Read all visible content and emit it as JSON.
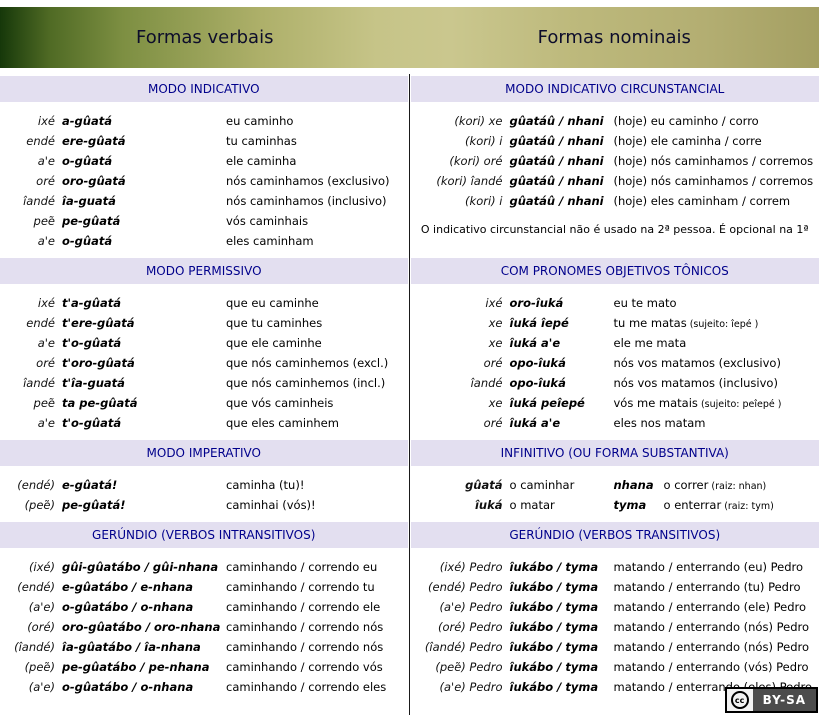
{
  "header": {
    "left_title": "Formas verbais",
    "right_title": "Formas nominais"
  },
  "bands": [
    {
      "left": {
        "title": "MODO INDICATIVO",
        "rows": [
          {
            "pronoun": "ixé",
            "form": "a-gûatá",
            "translation": "eu caminho"
          },
          {
            "pronoun": "endé",
            "form": "ere-gûatá",
            "translation": "tu caminhas"
          },
          {
            "pronoun": "a'e",
            "form": "o-gûatá",
            "translation": "ele caminha"
          },
          {
            "pronoun": "oré",
            "form": "oro-gûatá",
            "translation": "nós caminhamos (exclusivo)"
          },
          {
            "pronoun": "îandé",
            "form": "îa-guatá",
            "translation": "nós caminhamos (inclusivo)"
          },
          {
            "pronoun": "peẽ",
            "form": "pe-gûatá",
            "translation": "vós caminhais"
          },
          {
            "pronoun": "a'e",
            "form": "o-gûatá",
            "translation": "eles caminham"
          }
        ]
      },
      "right": {
        "title": "MODO INDICATIVO CIRCUNSTANCIAL",
        "rows": [
          {
            "pronoun": "(kori) xe",
            "form": "gûatáû / nhani",
            "translation": "(hoje) eu caminho / corro"
          },
          {
            "pronoun": "(kori) i",
            "form": "gûatáû / nhani",
            "translation": "(hoje) ele caminha / corre"
          },
          {
            "pronoun": "(kori) oré",
            "form": "gûatáû / nhani",
            "translation": "(hoje) nós caminhamos / corremos"
          },
          {
            "pronoun": "(kori) îandé",
            "form": "gûatáû / nhani",
            "translation": "(hoje) nós caminhamos / corremos"
          },
          {
            "pronoun": "(kori) i",
            "form": "gûatáû / nhani",
            "translation": "(hoje) eles caminham / correm"
          }
        ],
        "note": "O indicativo circunstancial não é usado na 2ª pessoa. É opcional na 1ª"
      }
    },
    {
      "left": {
        "title": "MODO PERMISSIVO",
        "rows": [
          {
            "pronoun": "ixé",
            "form": "t'a-gûatá",
            "translation": "que eu caminhe"
          },
          {
            "pronoun": "endé",
            "form": "t'ere-gûatá",
            "translation": "que tu caminhes"
          },
          {
            "pronoun": "a'e",
            "form": "t'o-gûatá",
            "translation": "que ele caminhe"
          },
          {
            "pronoun": "oré",
            "form": "t'oro-gûatá",
            "translation": "que nós caminhemos (excl.)"
          },
          {
            "pronoun": "îandé",
            "form": "t'îa-guatá",
            "translation": "que nós caminhemos (incl.)"
          },
          {
            "pronoun": "peẽ",
            "form": "ta pe-gûatá",
            "translation": "que vós caminheis"
          },
          {
            "pronoun": "a'e",
            "form": "t'o-gûatá",
            "translation": "que eles caminhem"
          }
        ]
      },
      "right": {
        "title": "COM PRONOMES OBJETIVOS TÔNICOS",
        "rows": [
          {
            "pronoun": "ixé",
            "form": "oro-îuká",
            "translation": "eu te mato"
          },
          {
            "pronoun": "xe",
            "form": "îuká îepé",
            "translation": "tu me matas",
            "small": "(sujeito: îepé )"
          },
          {
            "pronoun": "xe",
            "form": "îuká a'e",
            "translation": "ele me mata"
          },
          {
            "pronoun": "oré",
            "form": "opo-îuká",
            "translation": "nós vos matamos (exclusivo)"
          },
          {
            "pronoun": "îandé",
            "form": "opo-îuká",
            "translation": "nós vos matamos (inclusivo)"
          },
          {
            "pronoun": "xe",
            "form": "îuká peîepé",
            "translation": "vós me matais",
            "small": "(sujeito: peîepé )"
          },
          {
            "pronoun": "oré",
            "form": "îuká a'e",
            "translation": "eles nos matam"
          }
        ]
      }
    },
    {
      "left": {
        "title": "MODO IMPERATIVO",
        "rows": [
          {
            "pronoun": "(endé)",
            "form": "e-gûatá!",
            "translation": "caminha (tu)!"
          },
          {
            "pronoun": "(peẽ)",
            "form": "pe-gûatá!",
            "translation": "caminhai (vós)!"
          }
        ]
      },
      "right": {
        "title": "INFINITIVO (OU FORMA SUBSTANTIVA)",
        "rows": [
          {
            "form": "gûatá",
            "translation": "o caminhar",
            "form2": "nhana",
            "translation2": "o correr",
            "small2": "(raiz: nhan)"
          },
          {
            "form": "îuká",
            "translation": "o matar",
            "form2": "tyma",
            "translation2": "o enterrar",
            "small2": "(raiz: tym)"
          }
        ]
      }
    },
    {
      "left": {
        "title": "GERÚNDIO (VERBOS INTRANSITIVOS)",
        "rows": [
          {
            "pronoun": "(ixé)",
            "form": "gûi-gûatábo / gûi-nhana",
            "translation": "caminhando / correndo eu"
          },
          {
            "pronoun": "(endé)",
            "form": "e-gûatábo / e-nhana",
            "translation": "caminhando / correndo tu"
          },
          {
            "pronoun": "(a'e)",
            "form": "o-gûatábo / o-nhana",
            "translation": "caminhando / correndo ele"
          },
          {
            "pronoun": "(oré)",
            "form": "oro-gûatábo / oro-nhana",
            "translation": "caminhando / correndo nós"
          },
          {
            "pronoun": "(îandé)",
            "form": "îa-gûatábo / îa-nhana",
            "translation": "caminhando / correndo nós"
          },
          {
            "pronoun": "(peẽ)",
            "form": "pe-gûatábo / pe-nhana",
            "translation": "caminhando / correndo vós"
          },
          {
            "pronoun": "(a'e)",
            "form": "o-gûatábo / o-nhana",
            "translation": "caminhando / correndo eles"
          }
        ]
      },
      "right": {
        "title": "GERÚNDIO (VERBOS TRANSITIVOS)",
        "rows": [
          {
            "pronoun": "(ixé) Pedro",
            "form": "îukábo / tyma",
            "translation": "matando / enterrando (eu) Pedro"
          },
          {
            "pronoun": "(endé) Pedro",
            "form": "îukábo / tyma",
            "translation": "matando / enterrando (tu) Pedro"
          },
          {
            "pronoun": "(a'e) Pedro",
            "form": "îukábo / tyma",
            "translation": "matando / enterrando (ele) Pedro"
          },
          {
            "pronoun": "(oré) Pedro",
            "form": "îukábo / tyma",
            "translation": "matando / enterrando (nós) Pedro"
          },
          {
            "pronoun": "(îandé) Pedro",
            "form": "îukábo / tyma",
            "translation": "matando / enterrando (nós) Pedro"
          },
          {
            "pronoun": "(peẽ) Pedro",
            "form": "îukábo / tyma",
            "translation": "matando / enterrando (vós) Pedro"
          },
          {
            "pronoun": "(a'e) Pedro",
            "form": "îukábo / tyma",
            "translation": "matando / enterrando (eles) Pedro"
          }
        ]
      }
    }
  ],
  "license": {
    "cc_label": "cc",
    "label": "BY-SA"
  },
  "colors": {
    "header_gradient_dark": "#1d430d",
    "header_gradient_light": "#c7c48b",
    "section_header_bg": "#e3dff0",
    "section_header_text": "#00008b",
    "divider": "#1a1a1a",
    "title_text": "#0d0d2b"
  }
}
